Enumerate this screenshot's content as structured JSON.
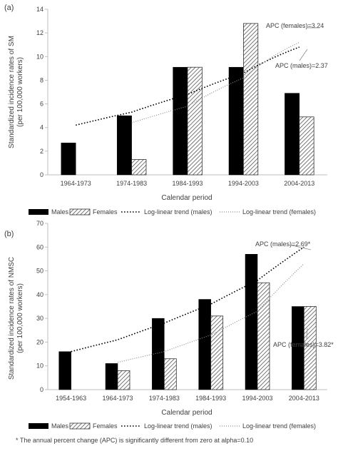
{
  "footnote": "* The annual percent change (APC) is significantly different from zero at alpha=0.10",
  "colors": {
    "males": "#000000",
    "females_hatch": "#555555",
    "axis": "#bfbfbf",
    "text": "#404040"
  },
  "chart_data": [
    {
      "panel_label": "(a)",
      "type": "bar",
      "title": "",
      "xlabel": "Calendar period",
      "ylabel": [
        "Standardized incidence rates of SM",
        "(per 100,000 workers)"
      ],
      "categories": [
        "1964-1973",
        "1974-1983",
        "1984-1993",
        "1994-2003",
        "2004-2013"
      ],
      "ylim": [
        0,
        14
      ],
      "yticks": [
        0,
        2,
        4,
        6,
        8,
        10,
        12,
        14
      ],
      "grid": false,
      "series": [
        {
          "name": "Males",
          "style": "solid-black",
          "values": [
            2.7,
            5.0,
            9.1,
            9.1,
            6.9
          ]
        },
        {
          "name": "Females",
          "style": "hatched",
          "values": [
            null,
            1.3,
            9.1,
            12.8,
            4.9
          ]
        }
      ],
      "trends": [
        {
          "name": "Log-linear trend (males)",
          "style": "dotted-black",
          "values": [
            4.2,
            5.3,
            6.8,
            8.6,
            10.8
          ]
        },
        {
          "name": "Log-linear trend (females)",
          "style": "dotted-gray",
          "start_index": 1,
          "values": [
            null,
            4.4,
            5.8,
            8.2,
            11.2
          ]
        }
      ],
      "annotations": [
        "APC (females)=3.24",
        "APC (males)=2.37"
      ],
      "legend_position": "bottom"
    },
    {
      "panel_label": "(b)",
      "type": "bar",
      "title": "",
      "xlabel": "Calendar period",
      "ylabel": [
        "Standardized incidence rates of NMSC",
        "(per 100,000 workers)"
      ],
      "categories": [
        "1954-1963",
        "1964-1973",
        "1974-1983",
        "1984-1993",
        "1994-2003",
        "2004-2013"
      ],
      "ylim": [
        0,
        70
      ],
      "yticks": [
        0,
        10,
        20,
        30,
        40,
        50,
        60,
        70
      ],
      "grid": false,
      "series": [
        {
          "name": "Males",
          "style": "solid-black",
          "values": [
            16,
            11,
            30,
            38,
            57,
            35
          ]
        },
        {
          "name": "Females",
          "style": "hatched",
          "values": [
            null,
            8,
            13,
            31,
            45,
            35
          ]
        }
      ],
      "trends": [
        {
          "name": "Log-linear trend (males)",
          "style": "dotted-black",
          "values": [
            16,
            21,
            28,
            36,
            46,
            60
          ]
        },
        {
          "name": "Log-linear trend (females)",
          "style": "dotted-gray",
          "start_index": 1,
          "values": [
            null,
            11.5,
            16,
            23,
            33,
            53
          ]
        }
      ],
      "annotations": [
        "APC (males)=2.69*",
        "APC (females)=3.82*"
      ],
      "legend_position": "bottom"
    }
  ]
}
